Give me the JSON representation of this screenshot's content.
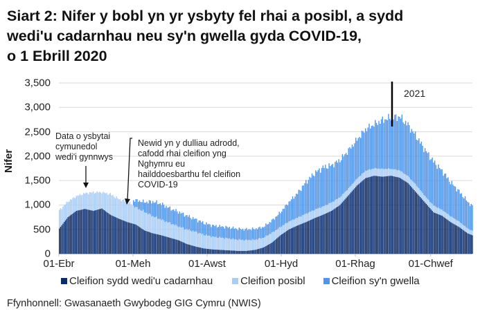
{
  "title_lines": [
    "Siart 2: Nifer y bobl yn yr ysbyty fel rhai a posibl, a sydd",
    "wedi'u cadarnhau neu sy'n gwella gyda COVID-19,",
    "o 1 Ebrill 2020"
  ],
  "source": "Ffynhonnell: Gwasanaeth Gwybodeg GIG Cymru (NWIS)",
  "annotations": {
    "community": [
      "Data o ysbytai",
      "cymunedol",
      "wedi'i gynnwys"
    ],
    "method_change": [
      "Newid yn y dulliau adrodd,",
      "cafodd rhai cleifion yng",
      "Nghymru eu",
      "hailddoesbarthu fel cleifion",
      "COVID-19"
    ],
    "year_marker": "2021"
  },
  "colors": {
    "confirmed": "#0b2c6b",
    "suspected": "#a9cdf7",
    "recovering": "#4d95ee",
    "grid": "#d9d9d9",
    "axis": "#bfbfbf"
  },
  "chart_data": {
    "type": "bar",
    "stacked": true,
    "title": "Siart 2: Nifer y bobl yn yr ysbyty fel rhai a posibl, a sydd wedi'u cadarnhau neu sy'n gwella gyda COVID-19, o 1 Ebrill 2020",
    "xlabel": "",
    "ylabel": "Nifer",
    "ylim": [
      0,
      3500
    ],
    "yticks": [
      0,
      500,
      1000,
      1500,
      2000,
      2500,
      3000,
      3500
    ],
    "ytick_labels": [
      "0",
      "500",
      "1,000",
      "1,500",
      "2,000",
      "2,500",
      "3,000",
      "3,500"
    ],
    "xtick_labels": [
      "01-Ebr",
      "01-Meh",
      "01-Awst",
      "01-Hyd",
      "01-Rhag",
      "01-Chwef"
    ],
    "xtick_day_offsets": [
      0,
      61,
      122,
      183,
      244,
      306
    ],
    "grid": true,
    "legend_position": "bottom",
    "legend": [
      "Cleifion sydd wedi'u cadarnhau",
      "Cleifion posibl",
      "Cleifion sy'n gwella"
    ],
    "x_day_offsets": [
      0,
      7,
      14,
      21,
      28,
      35,
      42,
      49,
      56,
      63,
      70,
      77,
      84,
      91,
      98,
      105,
      112,
      119,
      126,
      133,
      140,
      147,
      154,
      161,
      168,
      175,
      182,
      189,
      196,
      203,
      210,
      217,
      224,
      231,
      238,
      245,
      252,
      259,
      266,
      273,
      280,
      287,
      294,
      301,
      308,
      315,
      322,
      329,
      336,
      340
    ],
    "series": [
      {
        "name": "Cleifion sydd wedi'u cadarnhau",
        "values": [
          520,
          750,
          880,
          920,
          880,
          930,
          800,
          720,
          650,
          600,
          480,
          420,
          380,
          330,
          280,
          200,
          150,
          110,
          90,
          80,
          70,
          60,
          60,
          80,
          130,
          230,
          380,
          500,
          580,
          650,
          730,
          800,
          880,
          1000,
          1200,
          1400,
          1550,
          1600,
          1580,
          1600,
          1560,
          1450,
          1250,
          1050,
          850,
          780,
          650,
          550,
          420,
          380
        ]
      },
      {
        "name": "Cleifion posibl",
        "values": [
          370,
          320,
          300,
          320,
          380,
          330,
          420,
          400,
          420,
          350,
          380,
          350,
          320,
          300,
          280,
          300,
          300,
          280,
          260,
          250,
          240,
          230,
          220,
          210,
          200,
          200,
          170,
          160,
          160,
          170,
          170,
          170,
          170,
          160,
          140,
          140,
          150,
          150,
          160,
          140,
          150,
          140,
          150,
          130,
          140,
          120,
          120,
          110,
          100,
          90
        ]
      },
      {
        "name": "Cleifion sy'n gwella",
        "values": [
          0,
          0,
          0,
          0,
          0,
          0,
          0,
          0,
          0,
          150,
          200,
          300,
          320,
          300,
          300,
          280,
          260,
          240,
          230,
          230,
          230,
          220,
          220,
          220,
          220,
          250,
          300,
          400,
          500,
          650,
          750,
          800,
          760,
          760,
          780,
          800,
          850,
          900,
          1000,
          1050,
          1100,
          1050,
          1000,
          950,
          900,
          800,
          700,
          620,
          550,
          500
        ]
      }
    ]
  },
  "legend_items": [
    {
      "label": "Cleifion sydd wedi'u cadarnhau"
    },
    {
      "label": "Cleifion posibl"
    },
    {
      "label": "Cleifion sy'n gwella"
    }
  ]
}
